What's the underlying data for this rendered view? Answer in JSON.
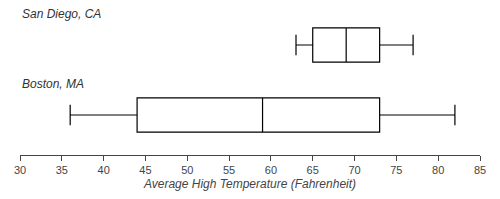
{
  "chart_data": {
    "type": "box",
    "orientation": "horizontal",
    "xlabel": "Average High Temperature (Fahrenheit)",
    "series": [
      {
        "name": "San Diego, CA",
        "whisker_min": 63,
        "q1": 65,
        "median": 69,
        "q3": 73,
        "whisker_max": 77
      },
      {
        "name": "Boston, MA",
        "whisker_min": 36,
        "q1": 44,
        "median": 59,
        "q3": 73,
        "whisker_max": 82
      }
    ],
    "xlim": [
      30,
      85
    ],
    "xticks": [
      30,
      35,
      40,
      45,
      50,
      55,
      60,
      65,
      70,
      75,
      80,
      85
    ],
    "color": "black",
    "tick_labels": "x",
    "grid": false
  }
}
